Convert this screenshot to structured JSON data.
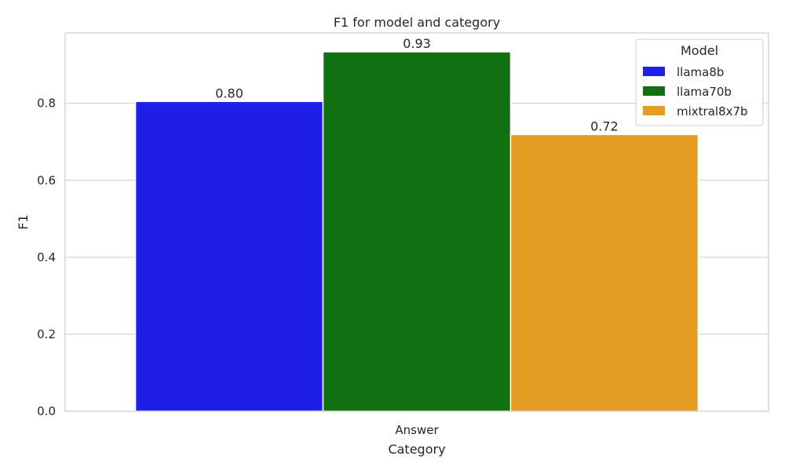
{
  "chart_data": {
    "type": "bar",
    "title": "F1 for model and category",
    "xlabel": "Category",
    "ylabel": "F1",
    "categories": [
      "Answer"
    ],
    "series": [
      {
        "name": "llama8b",
        "values": [
          0.805
        ],
        "label": "0.80",
        "color": "#1f1fe8"
      },
      {
        "name": "llama70b",
        "values": [
          0.934
        ],
        "label": "0.93",
        "color": "#0f7010"
      },
      {
        "name": "mixtral8x7b",
        "values": [
          0.719
        ],
        "label": "0.72",
        "color": "#e39c20"
      }
    ],
    "ylim": [
      0,
      0.983
    ],
    "yticks": [
      {
        "value": 0.0,
        "label": "0.0"
      },
      {
        "value": 0.2,
        "label": "0.2"
      },
      {
        "value": 0.4,
        "label": "0.4"
      },
      {
        "value": 0.6,
        "label": "0.6"
      },
      {
        "value": 0.8,
        "label": "0.8"
      }
    ],
    "grid": true,
    "legend": {
      "title": "Model",
      "position": "top-right"
    }
  }
}
